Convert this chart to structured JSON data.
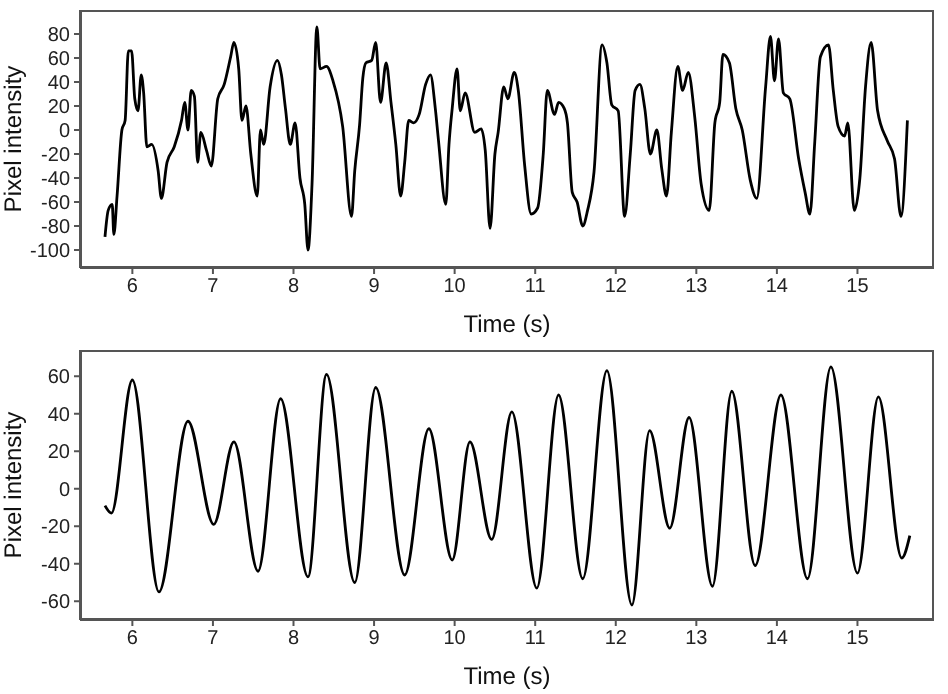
{
  "chart_data": [
    {
      "type": "line",
      "xlabel": "Time (s)",
      "ylabel": "Pixel intensity",
      "xlim": [
        5.35,
        15.95
      ],
      "xticks": [
        6,
        7,
        8,
        9,
        10,
        11,
        12,
        13,
        14,
        15
      ],
      "ylim": [
        -115,
        100
      ],
      "yticks": [
        -100,
        -80,
        -60,
        -40,
        -20,
        0,
        20,
        40,
        60,
        80
      ],
      "series": [
        {
          "color": "#000000",
          "x": [
            5.66,
            5.7,
            5.75,
            5.77,
            5.81,
            5.87,
            5.91,
            5.95,
            5.99,
            6.03,
            6.07,
            6.11,
            6.14,
            6.18,
            6.24,
            6.32,
            6.36,
            6.43,
            6.52,
            6.61,
            6.65,
            6.69,
            6.73,
            6.77,
            6.81,
            6.85,
            6.92,
            6.98,
            7.06,
            7.14,
            7.22,
            7.26,
            7.32,
            7.36,
            7.41,
            7.47,
            7.55,
            7.59,
            7.63,
            7.71,
            7.8,
            7.85,
            7.9,
            7.96,
            8.02,
            8.08,
            8.14,
            8.18,
            8.23,
            8.29,
            8.33,
            8.41,
            8.49,
            8.61,
            8.72,
            8.76,
            8.82,
            8.86,
            8.9,
            8.97,
            9.02,
            9.08,
            9.15,
            9.21,
            9.27,
            9.33,
            9.38,
            9.43,
            9.49,
            9.56,
            9.64,
            9.7,
            9.76,
            9.8,
            9.89,
            9.93,
            9.97,
            10.03,
            10.07,
            10.13,
            10.25,
            10.33,
            10.38,
            10.44,
            10.5,
            10.54,
            10.61,
            10.66,
            10.74,
            10.79,
            10.87,
            10.95,
            11.03,
            11.1,
            11.15,
            11.24,
            11.29,
            11.36,
            11.4,
            11.46,
            11.52,
            11.59,
            11.65,
            11.73,
            11.83,
            11.89,
            11.95,
            12.03,
            12.11,
            12.18,
            12.24,
            12.3,
            12.36,
            12.43,
            12.51,
            12.57,
            12.63,
            12.69,
            12.77,
            12.83,
            12.9,
            12.98,
            13.06,
            13.16,
            13.23,
            13.29,
            13.33,
            13.41,
            13.49,
            13.57,
            13.67,
            13.75,
            13.86,
            13.92,
            13.97,
            14.02,
            14.08,
            14.16,
            14.27,
            14.35,
            14.41,
            14.47,
            14.54,
            14.64,
            14.7,
            14.76,
            14.84,
            14.88,
            14.96,
            15.03,
            15.1,
            15.17,
            15.25,
            15.37,
            15.46,
            15.54,
            15.62
          ],
          "values": [
            -89,
            -67,
            -62,
            -87,
            -55,
            0,
            8,
            66,
            66,
            26,
            16,
            46,
            31,
            -14,
            -12,
            -34,
            -57,
            -27,
            -14,
            8,
            23,
            0,
            33,
            28,
            -27,
            -2,
            -17,
            -30,
            26,
            38,
            61,
            73,
            51,
            8,
            20,
            -20,
            -55,
            0,
            -12,
            36,
            58,
            46,
            18,
            -12,
            6,
            -40,
            -62,
            -100,
            -45,
            86,
            51,
            53,
            41,
            3,
            -72,
            -34,
            4,
            43,
            56,
            58,
            73,
            23,
            56,
            23,
            -12,
            -55,
            -27,
            8,
            6,
            13,
            38,
            46,
            18,
            -9,
            -62,
            -12,
            18,
            51,
            16,
            31,
            -2,
            1,
            -17,
            -82,
            -20,
            -2,
            36,
            26,
            48,
            33,
            -30,
            -70,
            -65,
            -20,
            33,
            13,
            23,
            18,
            6,
            -52,
            -60,
            -80,
            -67,
            -35,
            71,
            56,
            21,
            16,
            -72,
            -20,
            33,
            38,
            18,
            -20,
            0,
            -32,
            -55,
            -2,
            53,
            33,
            48,
            11,
            -45,
            -67,
            6,
            23,
            63,
            56,
            18,
            0,
            -42,
            -57,
            36,
            78,
            41,
            76,
            31,
            26,
            -24,
            -52,
            -70,
            -10,
            61,
            71,
            33,
            3,
            -5,
            6,
            -67,
            -40,
            36,
            73,
            16,
            -9,
            -24,
            -72,
            8
          ]
        }
      ]
    },
    {
      "type": "line",
      "xlabel": "Time (s)",
      "ylabel": "Pixel intensity",
      "xlim": [
        5.35,
        15.95
      ],
      "xticks": [
        6,
        7,
        8,
        9,
        10,
        11,
        12,
        13,
        14,
        15
      ],
      "ylim": [
        -70,
        74
      ],
      "yticks": [
        -60,
        -40,
        -20,
        0,
        20,
        40,
        60
      ],
      "series": [
        {
          "color": "#000000",
          "x": [
            5.66,
            5.74,
            6.0,
            6.33,
            6.69,
            7.01,
            7.26,
            7.56,
            7.84,
            8.18,
            8.41,
            8.76,
            9.02,
            9.38,
            9.68,
            9.97,
            10.19,
            10.46,
            10.71,
            11.02,
            11.29,
            11.59,
            11.89,
            12.2,
            12.42,
            12.67,
            12.91,
            13.2,
            13.44,
            13.73,
            14.05,
            14.38,
            14.67,
            15.0,
            15.26,
            15.55,
            15.65
          ],
          "values": [
            -9,
            -13,
            58,
            -55,
            36,
            -19,
            25,
            -44,
            48,
            -47,
            61,
            -50,
            54,
            -46,
            32,
            -38,
            25,
            -27,
            41,
            -53,
            50,
            -48,
            63,
            -62,
            31,
            -21,
            38,
            -52,
            52,
            -41,
            50,
            -48,
            65,
            -45,
            49,
            -37,
            -25
          ]
        }
      ]
    }
  ]
}
